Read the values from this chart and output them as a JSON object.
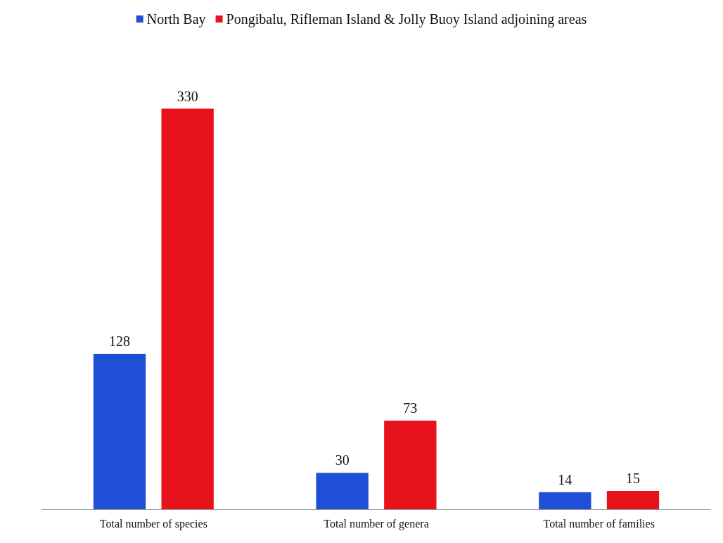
{
  "chart_data": {
    "type": "bar",
    "categories": [
      "Total number of species",
      "Total number of genera",
      "Total number of families"
    ],
    "series": [
      {
        "name": "North Bay",
        "color": "#1f4fd6",
        "values": [
          128,
          30,
          14
        ]
      },
      {
        "name": "Pongibalu, Rifleman Island & Jolly Buoy Island adjoining areas",
        "color": "#e8121c",
        "values": [
          330,
          73,
          15
        ]
      }
    ],
    "data_labels": true,
    "legend": "top"
  }
}
